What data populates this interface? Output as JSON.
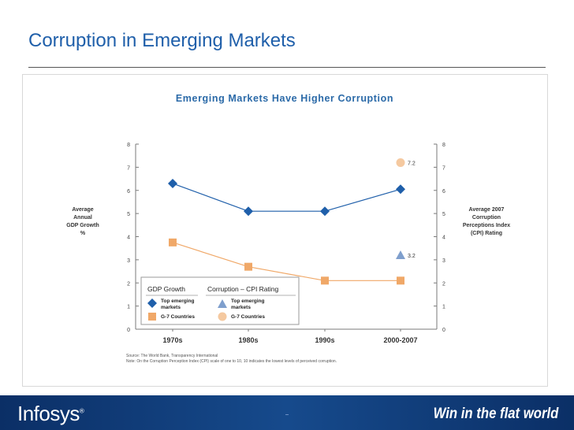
{
  "slide": {
    "title": "Corruption in Emerging Markets"
  },
  "footer": {
    "brand": "Infosys",
    "brand_mark": "®",
    "tagline": "Win in the flat world"
  },
  "colors": {
    "title": "#1f5faa",
    "chart_title": "#2b6aa8",
    "top_emerging": "#1f5faa",
    "g7_gdp": "#f0a868",
    "top_emerging_cpi": "#7f9fcd",
    "g7_cpi": "#f5c9a0",
    "axis": "#7a7a7a",
    "footer": "#0b2f66"
  },
  "chart_data": {
    "type": "line",
    "title": "Emerging Markets Have Higher Corruption",
    "categories": [
      "1970s",
      "1980s",
      "1990s",
      "2000-2007"
    ],
    "ylim": [
      0,
      8
    ],
    "yticks": [
      0,
      1,
      2,
      3,
      4,
      5,
      6,
      7,
      8
    ],
    "left_axis_label": [
      "Average",
      "Annual",
      "GDP Growth",
      "%"
    ],
    "right_axis_label": [
      "Average 2007",
      "Corruption",
      "Perceptions Index",
      "(CPI) Rating"
    ],
    "gdp_series": [
      {
        "name": "Top emerging markets",
        "marker": "diamond",
        "color": "#1f5faa",
        "values": [
          6.3,
          5.1,
          5.1,
          6.05
        ]
      },
      {
        "name": "G-7 Countries",
        "marker": "square",
        "color": "#f0a868",
        "values": [
          3.75,
          2.7,
          2.1,
          2.1
        ]
      }
    ],
    "cpi_points": [
      {
        "name": "Top emerging markets",
        "marker": "triangle",
        "color": "#7f9fcd",
        "category": "2000-2007",
        "value": 3.2,
        "label": "3.2"
      },
      {
        "name": "G-7 Countries",
        "marker": "circle",
        "color": "#f5c9a0",
        "category": "2000-2007",
        "value": 7.2,
        "label": "7.2"
      }
    ],
    "legend": {
      "placement": "bottom-left",
      "gdp_title": "GDP Growth",
      "cpi_title": "Corruption – CPI Rating",
      "top_emerging": [
        "Top emerging",
        "markets"
      ],
      "g7": "G-7 Countries"
    },
    "source": "Source: The World Bank, Transparency International",
    "note": "Note: On the Corruption Perception Index (CPI) scale of one to 10, 10 indicates the lowest levels of perceived corruption."
  }
}
